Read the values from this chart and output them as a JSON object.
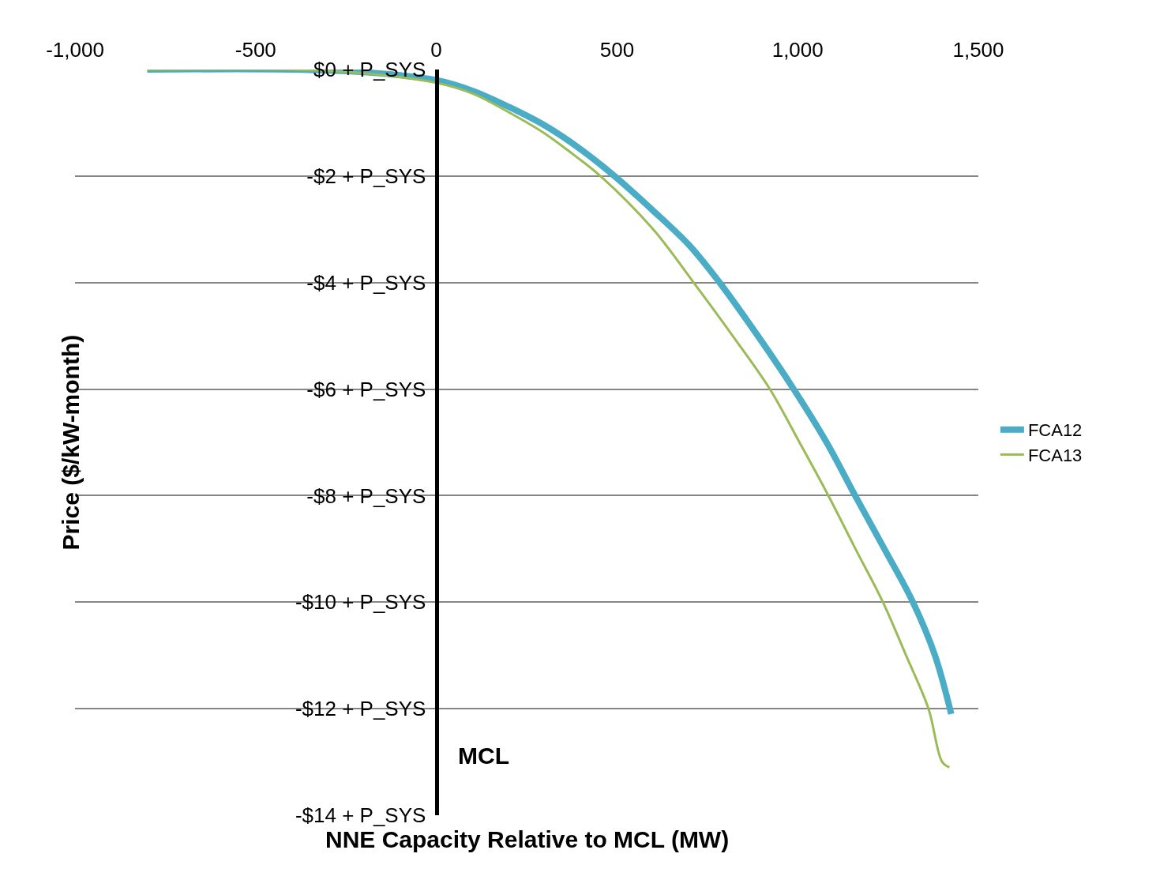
{
  "chart_data": {
    "type": "line",
    "xlabel": "NNE Capacity Relative to MCL (MW)",
    "ylabel": "Price ($/kW-month)",
    "xlim": [
      -1000,
      1500
    ],
    "xticks": [
      {
        "value": -1000,
        "label": "-1,000"
      },
      -500,
      0,
      500,
      {
        "value": 1000,
        "label": "1,000"
      },
      {
        "value": 1500,
        "label": "1,500"
      }
    ],
    "ylim": [
      -14,
      0
    ],
    "yticks": [
      {
        "value": 0,
        "label": "$0 + P_SYS"
      },
      {
        "value": -2,
        "label": "-$2 + P_SYS"
      },
      {
        "value": -4,
        "label": "-$4 + P_SYS"
      },
      {
        "value": -6,
        "label": "-$6 + P_SYS"
      },
      {
        "value": -8,
        "label": "-$8 + P_SYS"
      },
      {
        "value": -10,
        "label": "-$10 + P_SYS"
      },
      {
        "value": -12,
        "label": "-$12 + P_SYS"
      },
      {
        "value": -14,
        "label": "-$14 + P_SYS"
      }
    ],
    "grid": "y",
    "legend": "right",
    "marker": "none",
    "line_style": "solid",
    "annotations": [
      "MCL"
    ],
    "series": [
      {
        "name": "FCA12",
        "color": "#4bacc6",
        "x": [
          -800,
          -400,
          -200,
          0,
          100,
          200,
          300,
          400,
          493,
          600,
          700,
          784,
          900,
          989,
          1080,
          1159,
          1240,
          1319,
          1380,
          1425
        ],
        "values": [
          0,
          0,
          -0.05,
          -0.2,
          -0.4,
          -0.7,
          -1.05,
          -1.5,
          -2,
          -2.65,
          -3.3,
          -4,
          -5.1,
          -6,
          -7,
          -8,
          -9,
          -10,
          -11,
          -12.1
        ]
      },
      {
        "name": "FCA13",
        "color": "#9bbb59",
        "x": [
          -800,
          -400,
          -200,
          0,
          100,
          200,
          300,
          380,
          454,
          600,
          712,
          820,
          923,
          1005,
          1085,
          1160,
          1236,
          1300,
          1362,
          1400,
          1420
        ],
        "values": [
          0,
          0,
          -0.07,
          -0.25,
          -0.45,
          -0.8,
          -1.2,
          -1.6,
          -2,
          -3,
          -4,
          -5,
          -6,
          -7,
          -8,
          -9,
          -10,
          -11,
          -12,
          -13,
          -13.1
        ]
      }
    ]
  }
}
